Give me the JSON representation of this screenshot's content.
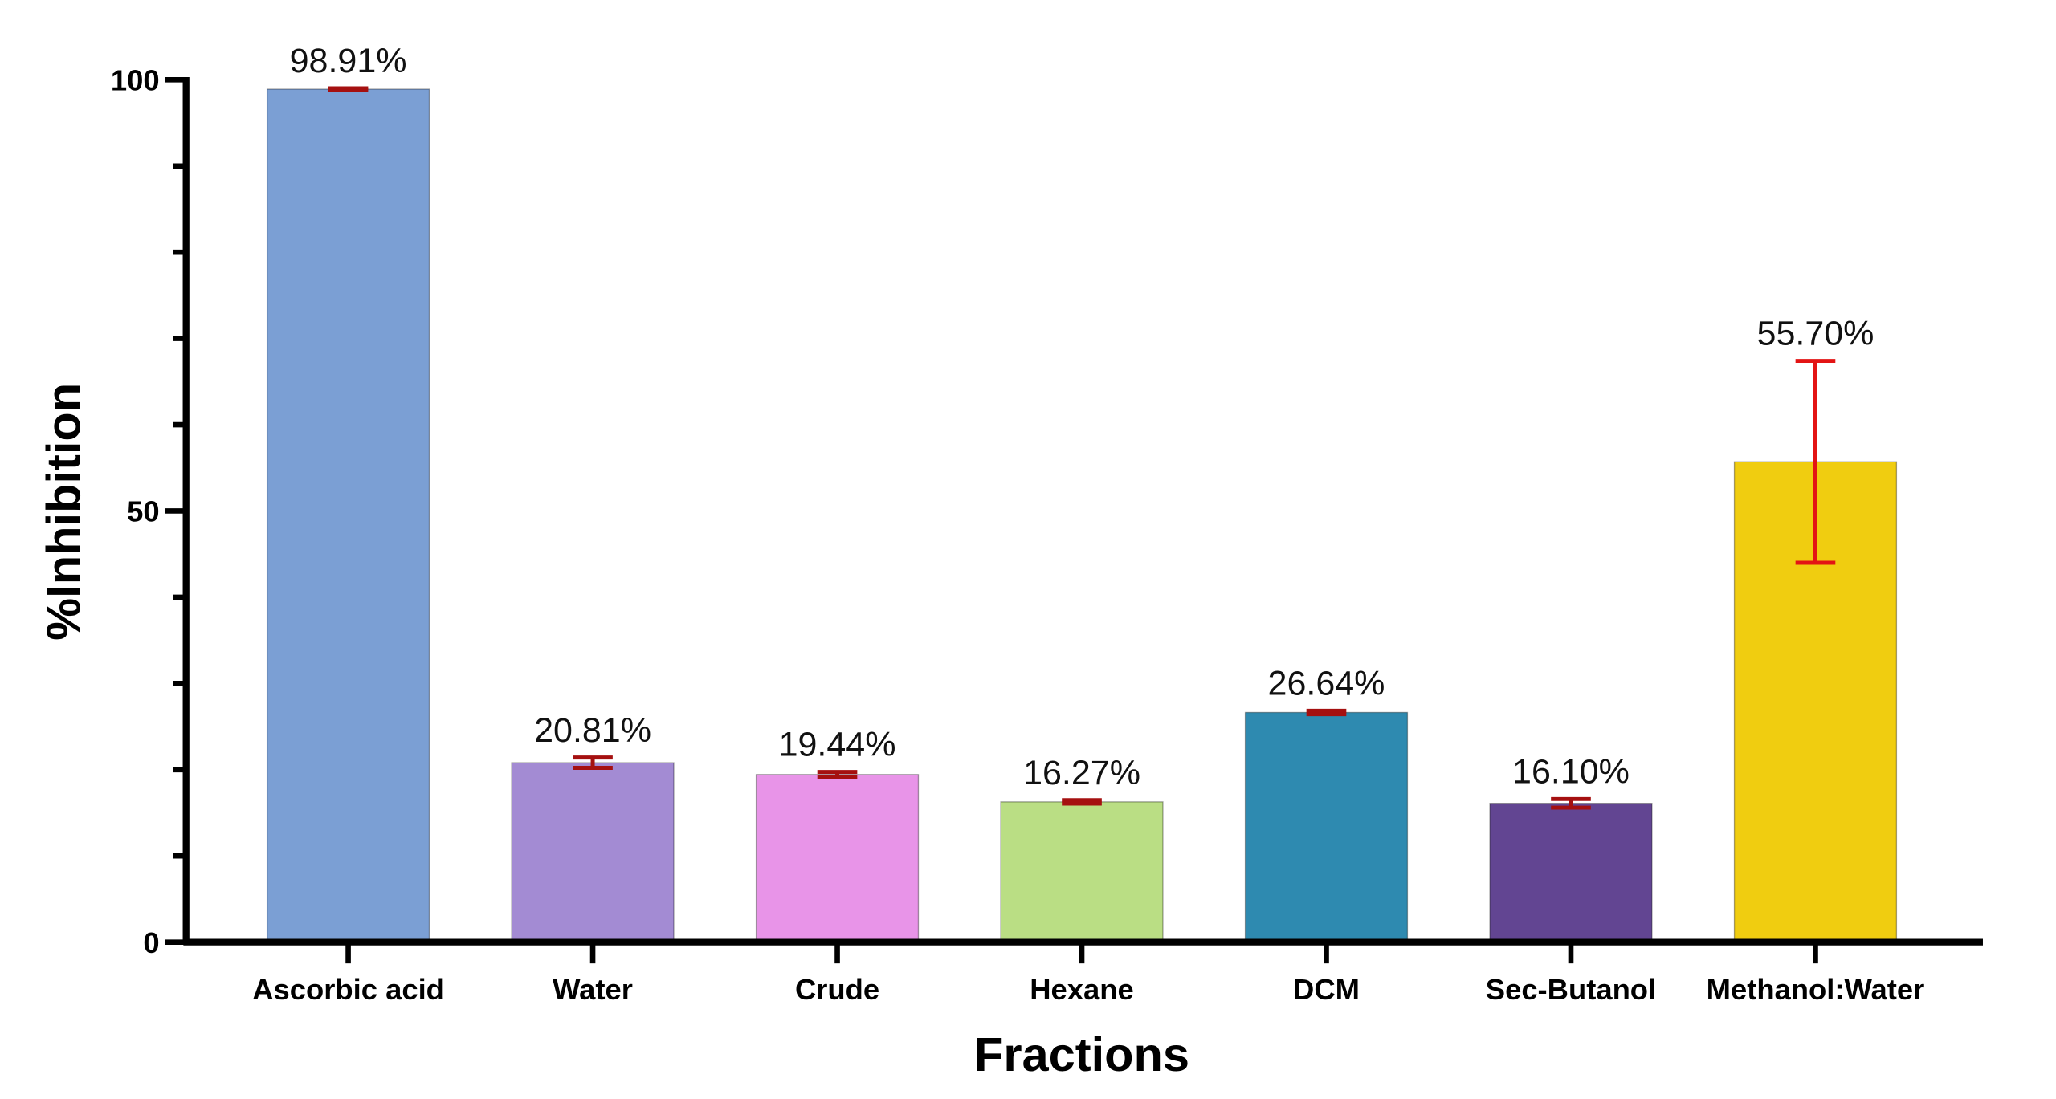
{
  "chart_data": {
    "type": "bar",
    "title": "",
    "xlabel": "Fractions",
    "ylabel": "%Inhibition",
    "ylim": [
      0,
      100
    ],
    "yticks": [
      0,
      50,
      100
    ],
    "yminor_step": 10,
    "grid": false,
    "categories": [
      "Ascorbic acid",
      "Water",
      "Crude",
      "Hexane",
      "DCM",
      "Sec-Butanol",
      "Methanol:Water"
    ],
    "values": [
      98.91,
      20.81,
      19.44,
      16.27,
      26.64,
      16.1,
      55.7
    ],
    "errors": [
      0.1,
      0.6,
      0.3,
      0.2,
      0.2,
      0.5,
      11.7
    ],
    "data_labels": [
      "98.91%",
      "20.81%",
      "19.44%",
      "16.27%",
      "26.64%",
      "16.10%",
      "55.70%"
    ],
    "colors": [
      "#7b9fd4",
      "#a38bd3",
      "#e894e8",
      "#bade84",
      "#2e8ab0",
      "#624592",
      "#f0cd10"
    ],
    "error_colors": [
      "#a51010",
      "#a51010",
      "#a51010",
      "#a51010",
      "#a51010",
      "#a51010",
      "#e31414"
    ]
  }
}
